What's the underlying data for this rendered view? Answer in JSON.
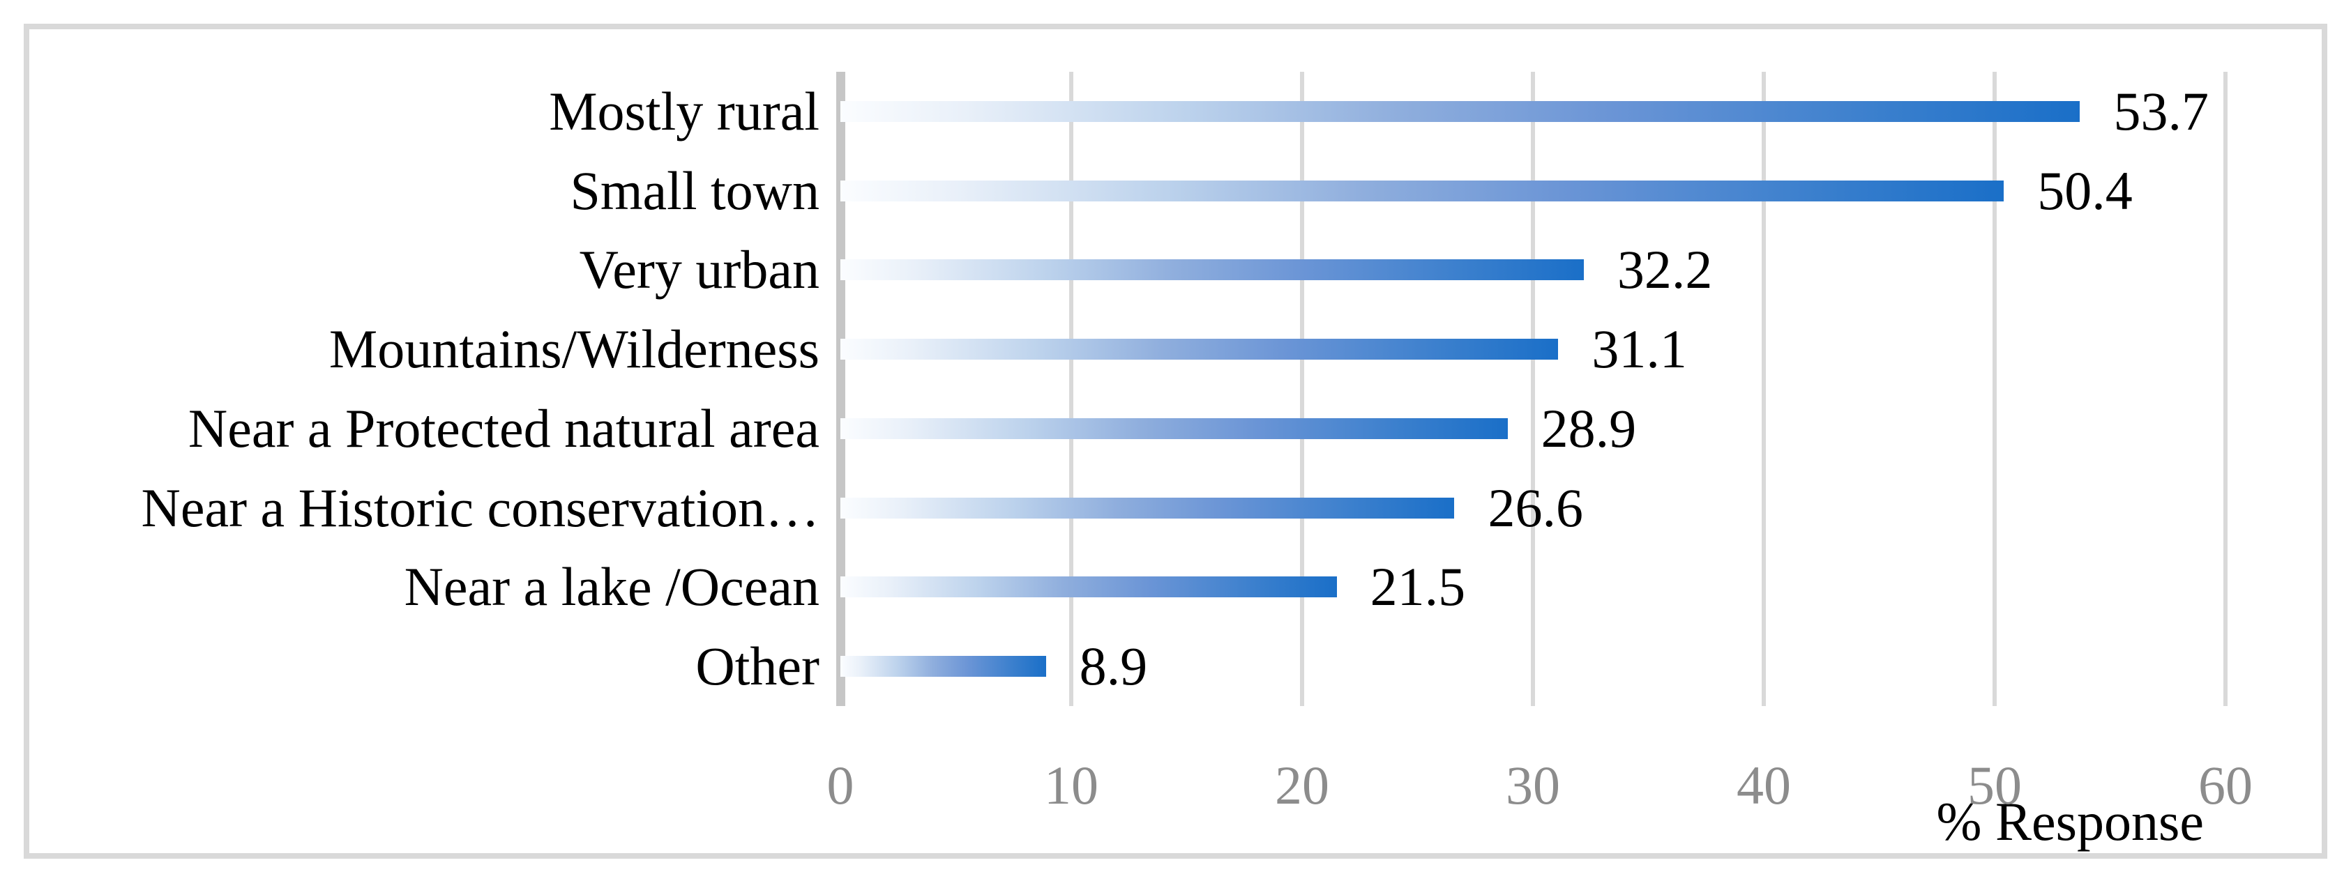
{
  "chart_data": {
    "type": "bar",
    "orientation": "horizontal",
    "title": "",
    "xlabel": "% Response",
    "ylabel": "",
    "categories": [
      "Mostly rural",
      "Small town",
      "Very urban",
      "Mountains/Wilderness",
      "Near a Protected natural area",
      "Near a Historic conservation…",
      "Near a lake /Ocean",
      "Other"
    ],
    "values": [
      53.7,
      50.4,
      32.2,
      31.1,
      28.9,
      26.6,
      21.5,
      8.9
    ],
    "data_labels": [
      "53.7",
      "50.4",
      "32.2",
      "31.1",
      "28.9",
      "26.6",
      "21.5",
      "8.9"
    ],
    "x_ticks": [
      0,
      10,
      20,
      30,
      40,
      50,
      60
    ],
    "x_tick_labels": [
      "0",
      "10",
      "20",
      "30",
      "40",
      "50",
      "60"
    ],
    "xlim": [
      0,
      60
    ],
    "grid": "vertical-gridlines-on",
    "legend": "none",
    "colors": {
      "bar_gradient_start": "#FBFDFF",
      "bar_gradient_end": "#1A6FC8",
      "gridline": "#D9D9D9",
      "axis_line": "#C6C6C6",
      "tick_label": "#8C8C8C",
      "data_label": "#000000",
      "category_label": "#000000",
      "figure_border": "#D9D9D9",
      "background": "#FFFFFF"
    }
  }
}
